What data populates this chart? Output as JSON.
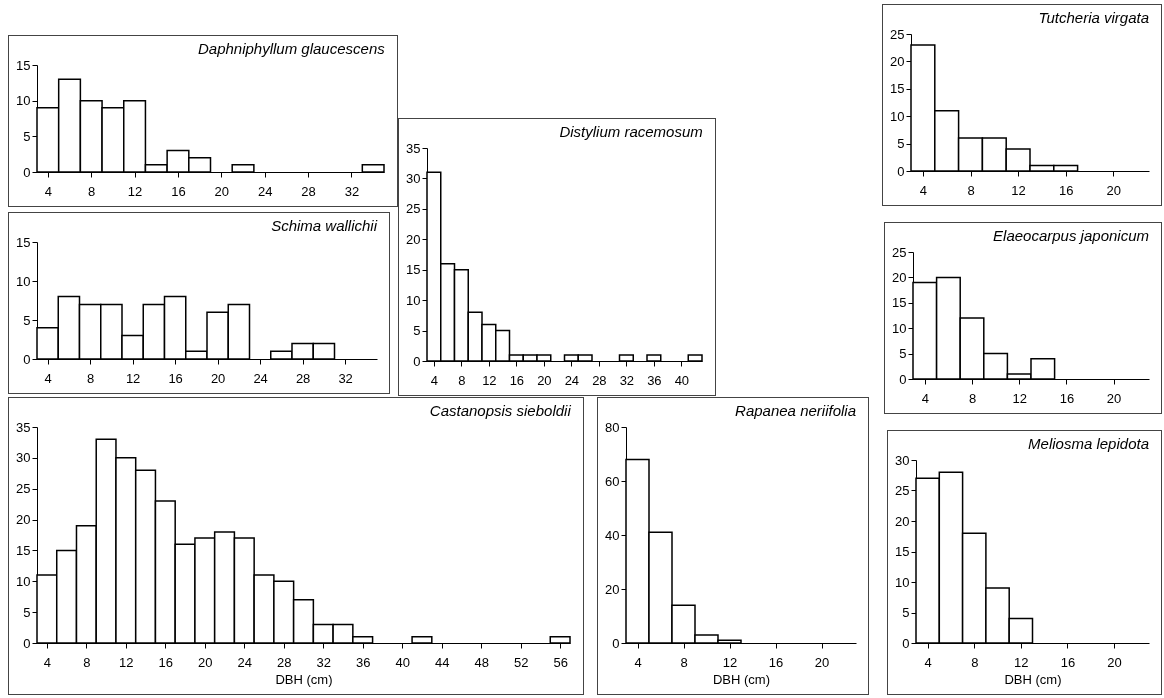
{
  "chart_data": [
    {
      "type": "histogram",
      "title": "Daphniphyllum glaucescens",
      "bins": [
        3,
        5,
        7,
        9,
        11,
        13,
        15,
        17,
        19,
        21,
        23,
        25,
        27,
        29,
        31,
        33,
        35
      ],
      "values": [
        9,
        13,
        10,
        9,
        10,
        1,
        3,
        2,
        0,
        1,
        0,
        0,
        0,
        0,
        0,
        1
      ],
      "color": "#ffffff",
      "xlim": [
        3,
        35
      ],
      "xticks": [
        4,
        8,
        12,
        16,
        20,
        24,
        28,
        32
      ],
      "ylim": [
        0,
        15
      ],
      "yticks": [
        0,
        5,
        10,
        15
      ]
    },
    {
      "type": "histogram",
      "title": "Distylium racemosum",
      "bins": [
        3,
        5,
        7,
        9,
        11,
        13,
        15,
        17,
        19,
        21,
        23,
        25,
        27,
        29,
        31,
        33,
        35,
        37,
        39,
        41,
        43
      ],
      "values": [
        31,
        16,
        15,
        8,
        6,
        5,
        1,
        1,
        1,
        0,
        1,
        1,
        0,
        0,
        1,
        0,
        1,
        0,
        0,
        1
      ],
      "color": "#ffffff",
      "xlim": [
        3,
        43
      ],
      "xticks": [
        4,
        8,
        12,
        16,
        20,
        24,
        28,
        32,
        36,
        40
      ],
      "ylim": [
        0,
        35
      ],
      "yticks": [
        0,
        5,
        10,
        15,
        20,
        25,
        30,
        35
      ]
    },
    {
      "type": "histogram",
      "title": "Tutcheria virgata",
      "bins": [
        3,
        5,
        7,
        9,
        11,
        13,
        15,
        17,
        19,
        21,
        23
      ],
      "values": [
        23,
        11,
        6,
        6,
        4,
        1,
        1,
        0,
        0,
        0
      ],
      "color": "#ffffff",
      "xlim": [
        3,
        23
      ],
      "xticks": [
        4,
        8,
        12,
        16,
        20
      ],
      "ylim": [
        0,
        25
      ],
      "yticks": [
        0,
        5,
        10,
        15,
        20,
        25
      ]
    },
    {
      "type": "histogram",
      "title": "Schima wallichii",
      "bins": [
        3,
        5,
        7,
        9,
        11,
        13,
        15,
        17,
        19,
        21,
        23,
        25,
        27,
        29,
        31,
        33,
        35
      ],
      "values": [
        4,
        8,
        7,
        7,
        3,
        7,
        8,
        1,
        6,
        7,
        0,
        1,
        2,
        2,
        0,
        0
      ],
      "color": "#ffffff",
      "xlim": [
        3,
        35
      ],
      "xticks": [
        4,
        8,
        12,
        16,
        20,
        24,
        28,
        32
      ],
      "ylim": [
        0,
        15
      ],
      "yticks": [
        0,
        5,
        10,
        15
      ]
    },
    {
      "type": "histogram",
      "title": "Elaeocarpus japonicum",
      "bins": [
        3,
        5,
        7,
        9,
        11,
        13,
        15,
        17,
        19,
        21,
        23
      ],
      "values": [
        19,
        20,
        12,
        5,
        1,
        4,
        0,
        0,
        0,
        0
      ],
      "color": "#ffffff",
      "xlim": [
        3,
        23
      ],
      "xticks": [
        4,
        8,
        12,
        16,
        20
      ],
      "ylim": [
        0,
        25
      ],
      "yticks": [
        0,
        5,
        10,
        15,
        20,
        25
      ]
    },
    {
      "type": "histogram",
      "title": "Castanopsis sieboldii",
      "xlabel": "DBH (cm)",
      "bins": [
        3,
        5,
        7,
        9,
        11,
        13,
        15,
        17,
        19,
        21,
        23,
        25,
        27,
        29,
        31,
        33,
        35,
        37,
        39,
        41,
        43,
        45,
        47,
        49,
        51,
        53,
        55,
        57
      ],
      "values": [
        11,
        15,
        19,
        33,
        30,
        28,
        23,
        16,
        17,
        18,
        17,
        11,
        10,
        7,
        3,
        3,
        1,
        0,
        0,
        1,
        0,
        0,
        0,
        0,
        0,
        0,
        1
      ],
      "color": "#ffffff",
      "xlim": [
        3,
        57
      ],
      "xticks": [
        4,
        8,
        12,
        16,
        20,
        24,
        28,
        32,
        36,
        40,
        44,
        48,
        52,
        56
      ],
      "ylim": [
        0,
        35
      ],
      "yticks": [
        0,
        5,
        10,
        15,
        20,
        25,
        30,
        35
      ]
    },
    {
      "type": "histogram",
      "title": "Rapanea neriifolia",
      "xlabel": "DBH (cm)",
      "bins": [
        3,
        5,
        7,
        9,
        11,
        13,
        15,
        17,
        19,
        21,
        23
      ],
      "values": [
        68,
        41,
        14,
        3,
        1,
        0,
        0,
        0,
        0,
        0
      ],
      "color": "#ffffff",
      "xlim": [
        3,
        23
      ],
      "xticks": [
        4,
        8,
        12,
        16,
        20
      ],
      "ylim": [
        0,
        80
      ],
      "yticks": [
        0,
        20,
        40,
        60,
        80
      ]
    },
    {
      "type": "histogram",
      "title": "Meliosma lepidota",
      "xlabel": "DBH (cm)",
      "bins": [
        3,
        5,
        7,
        9,
        11,
        13,
        15,
        17,
        19,
        21,
        23
      ],
      "values": [
        27,
        28,
        18,
        9,
        4,
        0,
        0,
        0,
        0,
        0
      ],
      "color": "#ffffff",
      "xlim": [
        3,
        23
      ],
      "xticks": [
        4,
        8,
        12,
        16,
        20
      ],
      "ylim": [
        0,
        30
      ],
      "yticks": [
        0,
        5,
        10,
        15,
        20,
        25,
        30
      ]
    }
  ]
}
